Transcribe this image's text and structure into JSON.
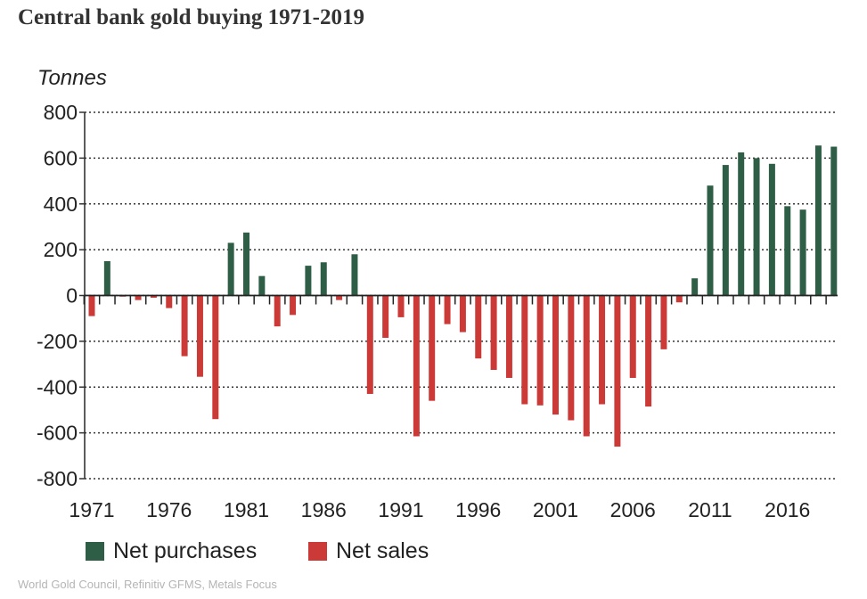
{
  "title": "Central bank gold buying 1971-2019",
  "source": "World Gold Council, Refinitiv GFMS, Metals Focus",
  "chart_data": {
    "type": "bar",
    "unit_label": "Tonnes",
    "ylim": [
      -800,
      800
    ],
    "yticks": [
      800,
      600,
      400,
      200,
      0,
      -200,
      -400,
      -600,
      -800
    ],
    "xtick_labels": [
      "1971",
      "1976",
      "1981",
      "1986",
      "1991",
      "1996",
      "2001",
      "2006",
      "2011",
      "2016"
    ],
    "grid": "horizontal dotted",
    "legend_placement": "bottom-left",
    "legend": [
      {
        "label": "Net purchases",
        "color": "#2f5e46"
      },
      {
        "label": "Net sales",
        "color": "#cc3a38"
      }
    ],
    "categories": [
      "1971",
      "1972",
      "1973",
      "1974",
      "1975",
      "1976",
      "1977",
      "1978",
      "1979",
      "1980",
      "1981",
      "1982",
      "1983",
      "1984",
      "1985",
      "1986",
      "1987",
      "1988",
      "1989",
      "1990",
      "1991",
      "1992",
      "1993",
      "1994",
      "1995",
      "1996",
      "1997",
      "1998",
      "1999",
      "2000",
      "2001",
      "2002",
      "2003",
      "2004",
      "2005",
      "2006",
      "2007",
      "2008",
      "2009",
      "2010",
      "2011",
      "2012",
      "2013",
      "2014",
      "2015",
      "2016",
      "2017",
      "2018",
      "2019"
    ],
    "values": [
      -90,
      150,
      -5,
      -20,
      -10,
      -55,
      -265,
      -355,
      -540,
      230,
      275,
      85,
      -135,
      -85,
      130,
      145,
      -20,
      180,
      -430,
      -185,
      -95,
      -615,
      -460,
      -125,
      -160,
      -275,
      -325,
      -360,
      -475,
      -480,
      -520,
      -545,
      -615,
      -475,
      -660,
      -360,
      -485,
      -235,
      -30,
      75,
      480,
      570,
      625,
      600,
      575,
      390,
      375,
      655,
      650
    ]
  }
}
